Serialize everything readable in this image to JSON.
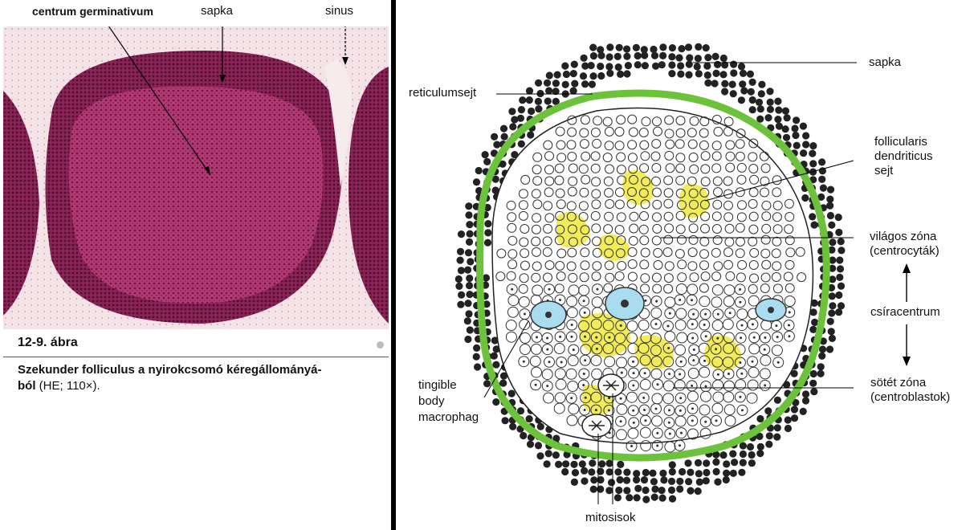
{
  "left": {
    "labels": {
      "centrum": "centrum germinativum",
      "sapka": "sapka",
      "sinus": "sinus"
    },
    "caption": {
      "number": "12-9. ábra",
      "title": "Szekunder folliculus a nyirokcsomó kéregállományá-ból",
      "title_line1": "Szekunder folliculus a nyirokcsomó kéregállományá-",
      "title_line2": "ból",
      "suffix": " (HE; 110×)."
    }
  },
  "right": {
    "labels": {
      "sapka": "sapka",
      "reticulumsejt": "reticulumsejt",
      "fdc_1": "follicularis",
      "fdc_2": "dendriticus",
      "fdc_3": "sejt",
      "light_1": "világos zóna",
      "light_2": "(centrocyták)",
      "germ": "csíracentrum",
      "dark_1": "sötét zóna",
      "dark_2": "(centroblastok)",
      "tbm_1": "tingible",
      "tbm_2": "body",
      "tbm_3": "macrophag",
      "mitosis": "mitosisok"
    }
  },
  "colors": {
    "stain_pink": "#b0356f",
    "stain_dark": "#7e1e4c",
    "mantle_dark": "#222222",
    "reticular_green": "#6cc23a",
    "fdc_yellow": "#f1ea4a",
    "macrophage_blue": "#a9dcef"
  }
}
